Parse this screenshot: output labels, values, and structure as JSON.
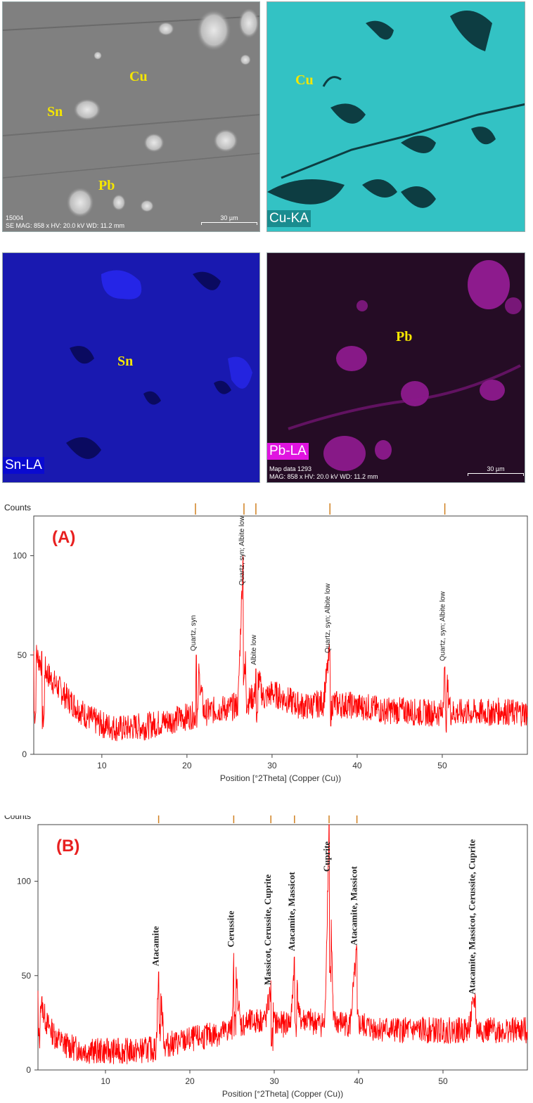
{
  "micrographs": {
    "se": {
      "labels": {
        "cu": "Cu",
        "sn": "Sn",
        "pb": "Pb"
      },
      "footer_id": "15004",
      "footer_params": "SE  MAG: 858 x  HV: 20.0 kV  WD: 11.2 mm",
      "scale": "30 µm"
    },
    "cu_map": {
      "element": "Cu",
      "label": "Cu-KA",
      "color": "#2ec7c9"
    },
    "sn_map": {
      "element": "Sn",
      "label": "Sn-LA",
      "color": "#1515b8"
    },
    "pb_map": {
      "element": "Pb",
      "label": "Pb-LA",
      "color": "#e014e0",
      "footer_id": "Map data 1293",
      "footer_params": "MAG: 858 x  HV: 20.0 kV  WD: 11.2 mm",
      "scale": "30 µm"
    }
  },
  "chart_data": [
    {
      "type": "line",
      "panel_label": "(A)",
      "ylabel": "Counts",
      "xlabel": "Position [°2Theta] (Copper (Cu))",
      "xlim": [
        2,
        60
      ],
      "ylim": [
        0,
        120
      ],
      "x_ticks": [
        10,
        20,
        30,
        40,
        50
      ],
      "y_ticks": [
        0,
        50,
        100
      ],
      "series": [
        {
          "x": [
            2,
            3,
            4,
            5,
            6,
            7,
            8,
            9,
            10,
            11,
            12,
            13,
            14,
            15,
            16,
            17,
            18,
            19,
            20,
            21,
            21.1,
            22,
            23,
            24,
            25,
            26,
            26.6,
            27,
            28,
            28.1,
            29,
            30,
            31,
            32,
            33,
            34,
            35,
            36,
            36.8,
            37,
            38,
            39,
            40,
            41,
            42,
            43,
            44,
            45,
            46,
            47,
            48,
            49,
            50,
            50.3,
            51,
            52,
            53,
            54,
            55,
            56,
            57,
            58,
            59,
            60
          ],
          "y": [
            52,
            45,
            38,
            33,
            28,
            24,
            20,
            17,
            15,
            14,
            13,
            13,
            14,
            14,
            15,
            16,
            17,
            18,
            19,
            20,
            50,
            21,
            22,
            23,
            23,
            25,
            100,
            26,
            30,
            43,
            28,
            31,
            29,
            27,
            25,
            24,
            25,
            26,
            52,
            26,
            25,
            25,
            24,
            24,
            23,
            22,
            22,
            22,
            22,
            21,
            21,
            21,
            21,
            44,
            21,
            21,
            21,
            21,
            21,
            21,
            22,
            21,
            21,
            21
          ]
        }
      ],
      "reference_ticks": [
        21.0,
        26.7,
        28.1,
        36.8,
        50.3
      ],
      "annotations": [
        {
          "x": 21.0,
          "y": 52,
          "text": "Quartz, syn"
        },
        {
          "x": 26.7,
          "y": 85,
          "text": "Quartz, syn; Albite low"
        },
        {
          "x": 28.1,
          "y": 45,
          "text": "Albite low"
        },
        {
          "x": 36.8,
          "y": 51,
          "text": "Quartz, syn; Albite low"
        },
        {
          "x": 50.3,
          "y": 47,
          "text": "Quartz, syn; Albite low"
        }
      ]
    },
    {
      "type": "line",
      "panel_label": "(B)",
      "ylabel": "Counts",
      "xlabel": "Position [°2Theta] (Copper (Cu))",
      "xlim": [
        2,
        60
      ],
      "ylim": [
        0,
        130
      ],
      "x_ticks": [
        10,
        20,
        30,
        40,
        50
      ],
      "y_ticks": [
        0,
        50,
        100
      ],
      "series": [
        {
          "x": [
            2,
            3,
            4,
            5,
            6,
            7,
            8,
            9,
            10,
            11,
            12,
            13,
            14,
            15,
            16,
            16.3,
            17,
            18,
            19,
            20,
            21,
            22,
            23,
            24,
            25,
            25.2,
            26,
            27,
            28,
            29,
            29.6,
            30,
            31,
            32,
            32.4,
            33,
            34,
            35,
            36,
            36.5,
            37,
            38,
            39,
            39.8,
            40,
            41,
            42,
            43,
            44,
            45,
            46,
            47,
            48,
            49,
            50,
            51,
            52,
            53,
            53.8,
            54,
            55,
            56,
            57,
            58,
            59,
            60
          ],
          "y": [
            42,
            25,
            18,
            14,
            12,
            11,
            10,
            10,
            10,
            10,
            10,
            10,
            10,
            11,
            11,
            52,
            13,
            14,
            15,
            16,
            17,
            18,
            19,
            20,
            22,
            62,
            24,
            25,
            26,
            27,
            42,
            25,
            24,
            26,
            60,
            27,
            26,
            25,
            24,
            130,
            25,
            25,
            24,
            64,
            24,
            23,
            22,
            22,
            21,
            21,
            21,
            21,
            21,
            21,
            21,
            21,
            21,
            21,
            38,
            21,
            21,
            21,
            21,
            21,
            21,
            21
          ]
        }
      ],
      "reference_ticks": [
        16.3,
        25.2,
        29.6,
        32.4,
        36.5,
        39.8
      ],
      "annotations": [
        {
          "x": 16.3,
          "y": 55,
          "text": "Atacamite"
        },
        {
          "x": 25.2,
          "y": 65,
          "text": "Cerussite"
        },
        {
          "x": 29.6,
          "y": 45,
          "text": "Massicot, Cerussite, Cuprite"
        },
        {
          "x": 32.4,
          "y": 63,
          "text": "Atacamite, Massicot"
        },
        {
          "x": 36.6,
          "y": 105,
          "text": "Cuprite"
        },
        {
          "x": 39.8,
          "y": 66,
          "text": "Atacamite, Massicot"
        },
        {
          "x": 53.8,
          "y": 40,
          "text": "Atacamite, Massicot, Cerussite, Cuprite"
        }
      ]
    }
  ]
}
